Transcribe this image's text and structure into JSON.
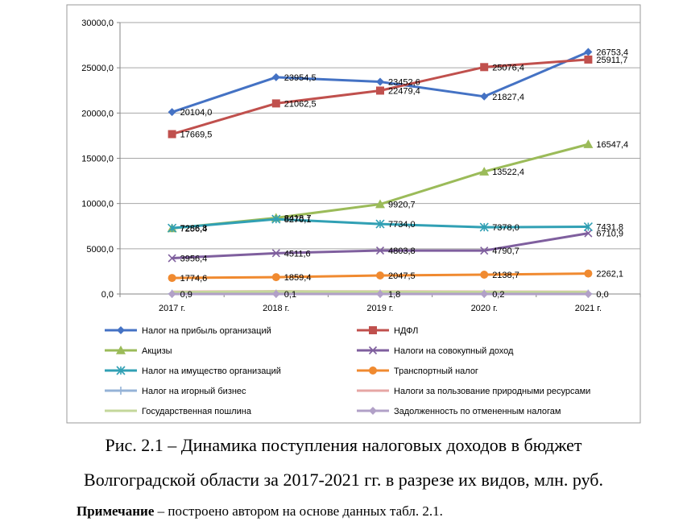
{
  "chart_data": {
    "type": "line",
    "categories": [
      "2017 г.",
      "2018 г.",
      "2019 г.",
      "2020 г.",
      "2021 г."
    ],
    "ylim": [
      0,
      30000
    ],
    "yticks": [
      "0,0",
      "5000,0",
      "10000,0",
      "15000,0",
      "20000,0",
      "25000,0",
      "30000,0"
    ],
    "grid": true,
    "legend_position": "bottom",
    "series": [
      {
        "name": "Налог на прибыль организаций",
        "color": "#4472C4",
        "marker": "diamond",
        "values": [
          20104.0,
          23954.5,
          23452.6,
          21827.4,
          26753.4
        ],
        "labels": [
          "20104,0",
          "23954,5",
          "23452,6",
          "21827,4",
          "26753,4"
        ]
      },
      {
        "name": "НДФЛ",
        "color": "#C0504D",
        "marker": "square",
        "values": [
          17669.5,
          21062.5,
          22479.4,
          25076.4,
          25911.7
        ],
        "labels": [
          "17669,5",
          "21062,5",
          "22479,4",
          "25076,4",
          "25911,7"
        ]
      },
      {
        "name": "Акцизы",
        "color": "#9BBB59",
        "marker": "triangle",
        "values": [
          7256.4,
          8418.7,
          9920.7,
          13522.4,
          16547.4
        ],
        "labels": [
          "7256,4",
          "8418,7",
          "9920,7",
          "13522,4",
          "16547,4"
        ]
      },
      {
        "name": "Налоги на совокупный доход",
        "color": "#7F5F9E",
        "marker": "x",
        "values": [
          3956.4,
          4511.6,
          4803.8,
          4790.7,
          6710.9
        ],
        "labels": [
          "3956,4",
          "4511,6",
          "4803,8",
          "4790,7",
          "6710,9"
        ]
      },
      {
        "name": "Налог на имущество организаций",
        "color": "#31A0B4",
        "marker": "star",
        "values": [
          7286.8,
          8270.1,
          7734.0,
          7378.0,
          7431.8
        ],
        "labels": [
          "7286,8",
          "8270,1",
          "7734,0",
          "7378,0",
          "7431,8"
        ]
      },
      {
        "name": "Транспортный налог",
        "color": "#F08A30",
        "marker": "circle",
        "values": [
          1774.6,
          1859.4,
          2047.5,
          2138.7,
          2262.1
        ],
        "labels": [
          "1774,6",
          "1859,4",
          "2047,5",
          "2138,7",
          "2262,1"
        ]
      },
      {
        "name": "Налог на игорный бизнес",
        "color": "#95B3D7",
        "marker": "plus",
        "values": [
          30,
          30,
          30,
          30,
          30
        ],
        "labels": []
      },
      {
        "name": "Налоги за пользование природными ресурсами",
        "color": "#E6A6A4",
        "marker": "none",
        "values": [
          250,
          300,
          280,
          260,
          250
        ],
        "labels": []
      },
      {
        "name": "Государственная пошлина",
        "color": "#C4D79B",
        "marker": "none",
        "values": [
          200,
          280,
          240,
          220,
          210
        ],
        "labels": []
      },
      {
        "name": "Задолженность по отмененным налогам",
        "color": "#B1A0C7",
        "marker": "diamond",
        "values": [
          0.9,
          0.1,
          1.8,
          0.2,
          0.0
        ],
        "labels": [
          "0,9",
          "0,1",
          "1,8",
          "0,2",
          "0,0"
        ]
      }
    ]
  },
  "caption": {
    "line1": "Рис. 2.1 – Динамика поступления налоговых доходов в бюджет",
    "line2": "Волгоградской области за 2017-2021 гг. в разрезе их видов, млн. руб."
  },
  "note": {
    "label": "Примечание",
    "text": " – построено автором на основе данных табл. 2.1."
  }
}
